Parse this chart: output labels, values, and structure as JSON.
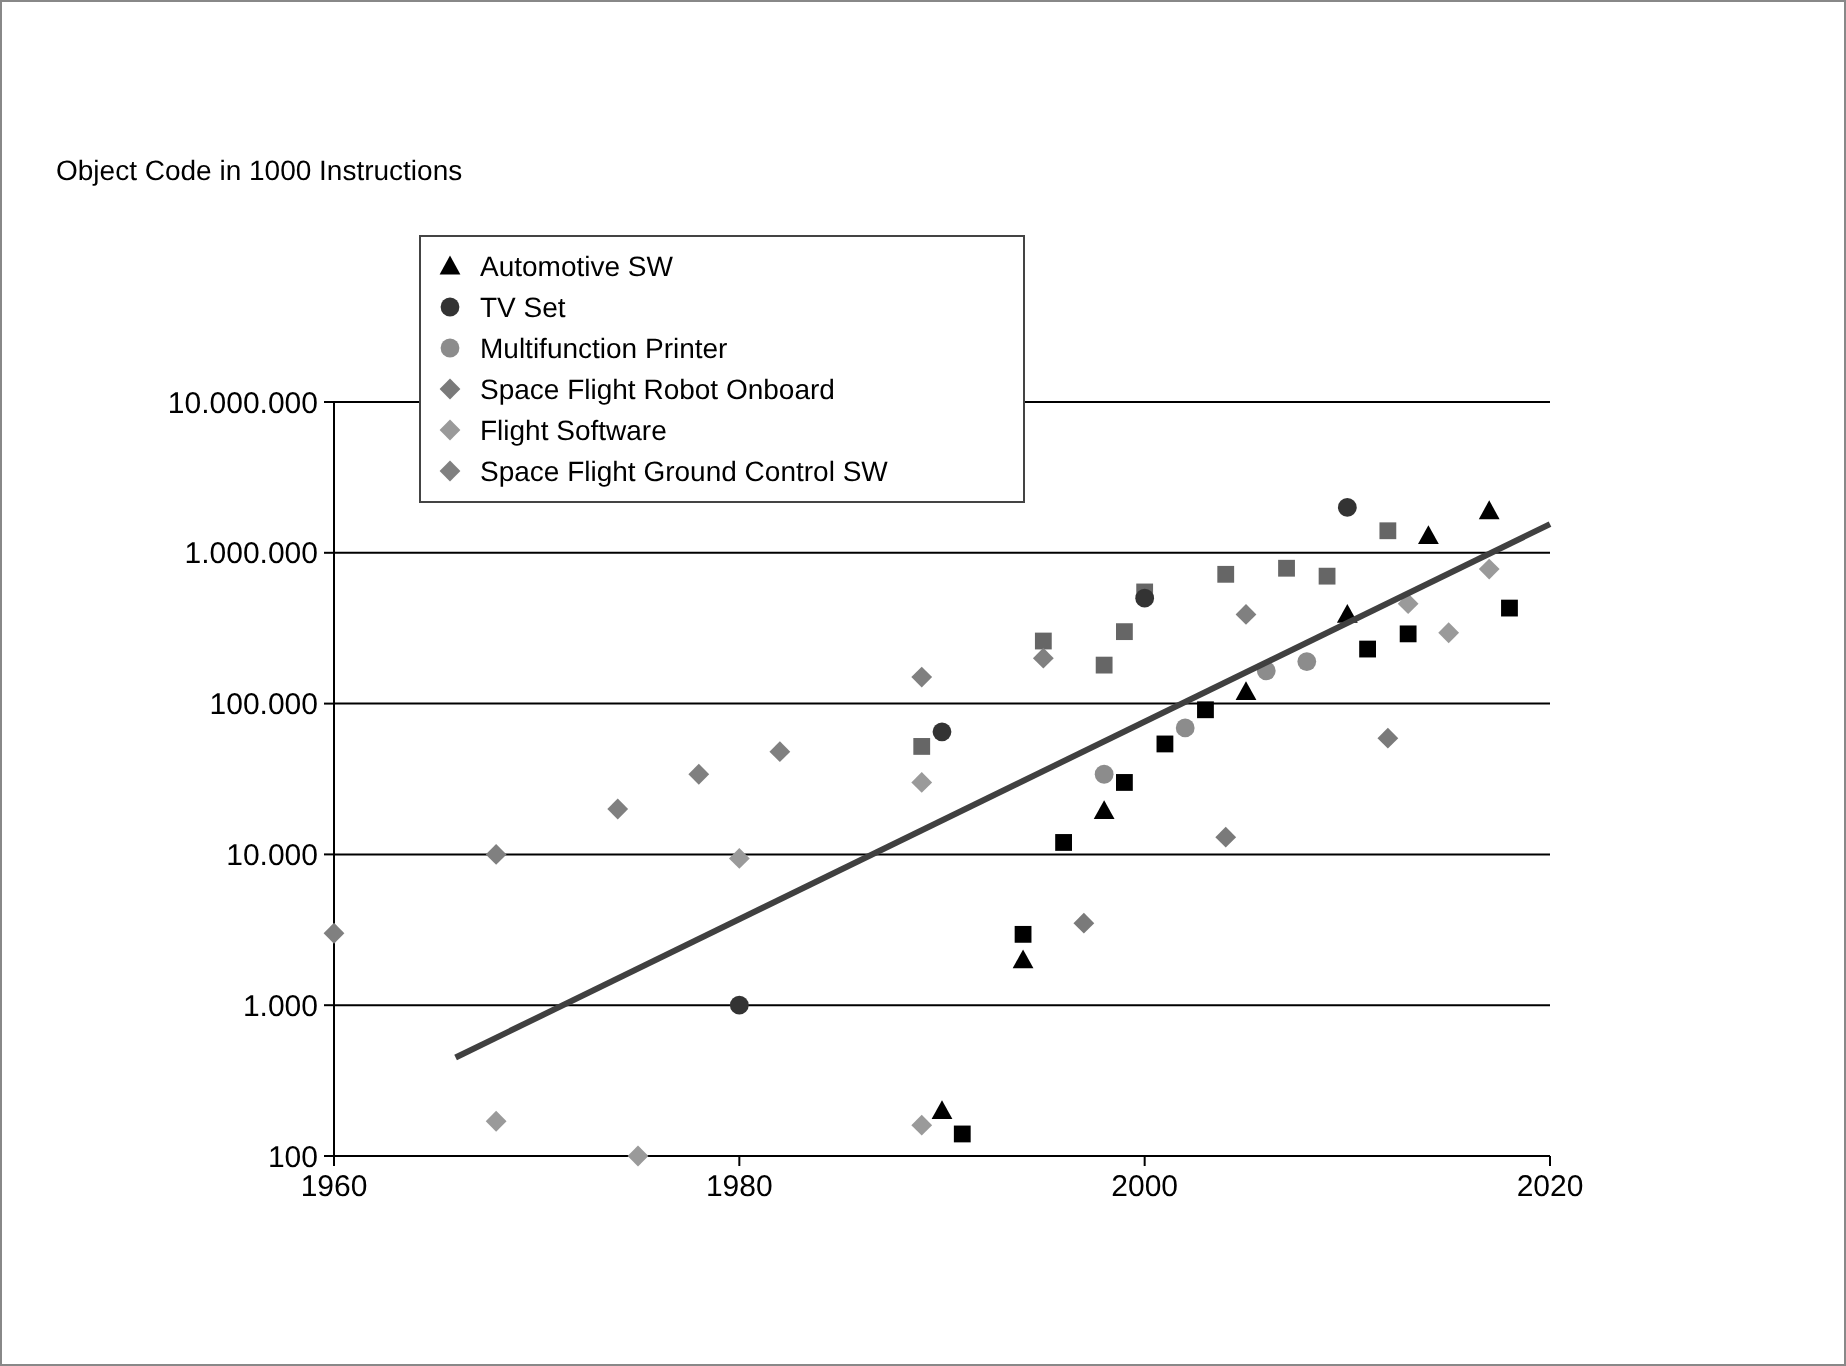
{
  "chart_data": {
    "type": "scatter",
    "annotations": [
      "Object Code in 1000 Instructions"
    ],
    "log": "y",
    "grid": "y",
    "legend": "top left",
    "xlim": [
      1960,
      2020
    ],
    "xticks": [
      1960,
      1980,
      2000,
      2020
    ],
    "ylim": [
      100,
      10000000
    ],
    "yticks": [
      100,
      {
        "value": 1000,
        "label": "1.000"
      },
      {
        "value": 10000,
        "label": "10.000"
      },
      {
        "value": 100000,
        "label": "100.000"
      },
      {
        "value": 1000000,
        "label": "1.000.000"
      },
      {
        "value": 10000000,
        "label": "10.000.000"
      }
    ],
    "series": [
      {
        "color": "#666666",
        "marker": "square",
        "x": [
          1989,
          1995,
          1998,
          1999,
          2000,
          2004,
          2007,
          2009,
          2012
        ],
        "values": [
          52000,
          260000,
          180000,
          300000,
          550000,
          720000,
          790000,
          700000,
          1400000
        ]
      },
      {
        "color": "#000000",
        "marker": "square",
        "x": [
          1991,
          1994,
          1996,
          1999,
          2001,
          2003,
          2011,
          2013,
          2018
        ],
        "values": [
          140,
          2950,
          12000,
          30000,
          54000,
          91000,
          230000,
          290000,
          430000
        ]
      },
      {
        "name": "Automotive SW",
        "color": "#000000",
        "marker": "triangle",
        "x": [
          1990,
          1994,
          1998,
          2005,
          2010,
          2014,
          2017
        ],
        "values": [
          200,
          2000,
          19500,
          120000,
          390000,
          1300000,
          1900000
        ]
      },
      {
        "name": "TV Set",
        "color": "#333333",
        "marker": "circle",
        "x": [
          1980,
          1990,
          2000,
          2010
        ],
        "values": [
          1000,
          65000,
          500000,
          2000000
        ]
      },
      {
        "name": "Multifunction Printer",
        "color": "#8c8c8c",
        "marker": "circle",
        "x": [
          1998,
          2002,
          2006,
          2008
        ],
        "values": [
          34000,
          69000,
          165000,
          190000
        ]
      },
      {
        "name": "Space Flight Robot Onboard",
        "color": "#7a7a7a",
        "marker": "diamond",
        "x": [
          1997,
          2004,
          2012
        ],
        "values": [
          3500,
          13000,
          59000
        ]
      },
      {
        "name": "Flight Software",
        "color": "#9a9a9a",
        "marker": "diamond",
        "x": [
          1968,
          1975,
          1980,
          1989,
          1989,
          2013,
          2015,
          2017
        ],
        "values": [
          170,
          100,
          9400,
          160,
          30000,
          460000,
          295000,
          780000
        ]
      },
      {
        "name": "Space Flight Ground Control SW",
        "color": "#808080",
        "marker": "diamond",
        "x": [
          1960,
          1968,
          1974,
          1978,
          1982,
          1989,
          1995,
          2005
        ],
        "values": [
          3000,
          10000,
          20000,
          34000,
          48000,
          150000,
          200000,
          390000
        ]
      },
      {
        "type": "line",
        "color": "#404040",
        "x": [
          1966,
          2020
        ],
        "values": [
          450,
          1550000
        ]
      }
    ]
  }
}
